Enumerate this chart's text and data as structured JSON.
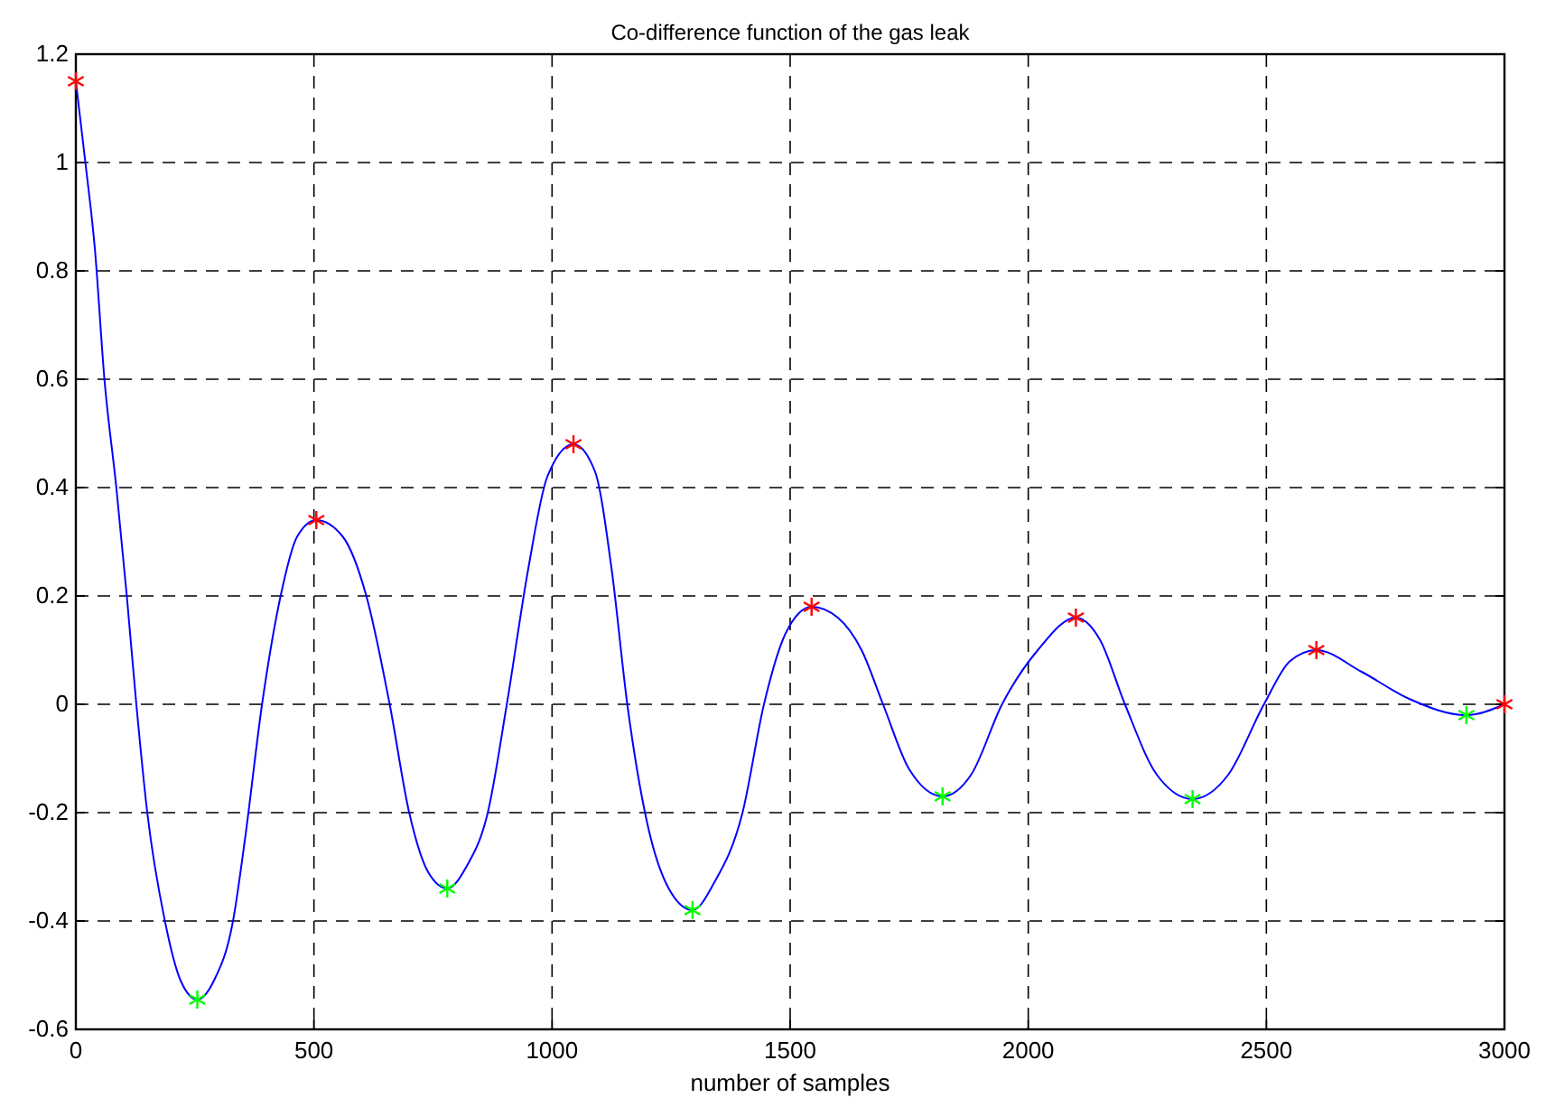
{
  "chart_data": {
    "type": "line",
    "title": "Co-difference function of the gas leak",
    "xlabel": "number of samples",
    "xlim": [
      0,
      3000
    ],
    "xticks": [
      0,
      500,
      1000,
      1500,
      2000,
      2500,
      3000
    ],
    "ylim": [
      -0.6,
      1.2
    ],
    "yticks": [
      -0.6,
      -0.4,
      -0.2,
      0,
      0.2,
      0.4,
      0.6,
      0.8,
      1,
      1.2
    ],
    "grid": true,
    "series": [
      {
        "color": "#0000ff",
        "marker": "none",
        "line_style": "solid",
        "x": [
          0,
          20,
          40,
          60,
          85,
          107,
          127,
          150,
          187,
          220,
          255,
          290,
          330,
          355,
          391,
          430,
          465,
          505,
          560,
          610,
          659,
          700,
          740,
          780,
          820,
          865,
          905,
          950,
          990,
          1045,
          1090,
          1125,
          1158,
          1200,
          1245,
          1295,
          1340,
          1400,
          1445,
          1490,
          1545,
          1600,
          1650,
          1695,
          1750,
          1820,
          1880,
          1945,
          2020,
          2100,
          2150,
          2203,
          2270,
          2345,
          2420,
          2495,
          2550,
          2605,
          2700,
          2800,
          2920,
          3000
        ],
        "values": [
          1.15,
          1.0,
          0.84,
          0.6,
          0.4,
          0.2,
          0,
          -0.2,
          -0.4,
          -0.51,
          -0.545,
          -0.51,
          -0.4,
          -0.25,
          0,
          0.2,
          0.31,
          0.34,
          0.31,
          0.2,
          0,
          -0.2,
          -0.31,
          -0.34,
          -0.3,
          -0.2,
          0,
          0.25,
          0.42,
          0.48,
          0.43,
          0.25,
          0,
          -0.22,
          -0.34,
          -0.38,
          -0.33,
          -0.2,
          0,
          0.13,
          0.18,
          0.16,
          0.1,
          0,
          -0.12,
          -0.17,
          -0.13,
          0,
          0.1,
          0.16,
          0.12,
          0,
          -0.13,
          -0.175,
          -0.13,
          0,
          0.08,
          0.1,
          0.06,
          0.01,
          -0.02,
          0
        ]
      },
      {
        "type": "scatter",
        "color": "#ff0000",
        "marker": "cross",
        "x": [
          0,
          505,
          1045,
          1545,
          2100,
          2605,
          3000
        ],
        "values": [
          1.15,
          0.34,
          0.48,
          0.18,
          0.16,
          0.1,
          0
        ]
      },
      {
        "type": "scatter",
        "color": "#00ff00",
        "marker": "cross",
        "x": [
          255,
          780,
          1295,
          1820,
          2345,
          2920
        ],
        "values": [
          -0.545,
          -0.34,
          -0.38,
          -0.17,
          -0.175,
          -0.02
        ]
      }
    ]
  }
}
